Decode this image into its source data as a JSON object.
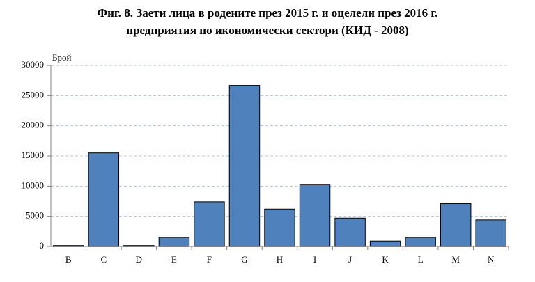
{
  "chart_data": {
    "type": "bar",
    "title": [
      "Фиг. 8. Заети лица в родените през 2015 г. и оцелели през 2016 г.",
      "предприятия по икономически сектори (КИД - 2008)"
    ],
    "y_label": "Брой",
    "categories": [
      "B",
      "C",
      "D",
      "E",
      "F",
      "G",
      "H",
      "I",
      "J",
      "K",
      "L",
      "M",
      "N"
    ],
    "values": [
      150,
      15500,
      150,
      1500,
      7400,
      26700,
      6200,
      10300,
      4700,
      900,
      1500,
      7100,
      4400
    ],
    "color": "#4f81bd",
    "ylim": [
      0,
      30000
    ],
    "yticks": [
      0,
      5000,
      10000,
      15000,
      20000,
      25000,
      30000
    ],
    "grid": true
  }
}
